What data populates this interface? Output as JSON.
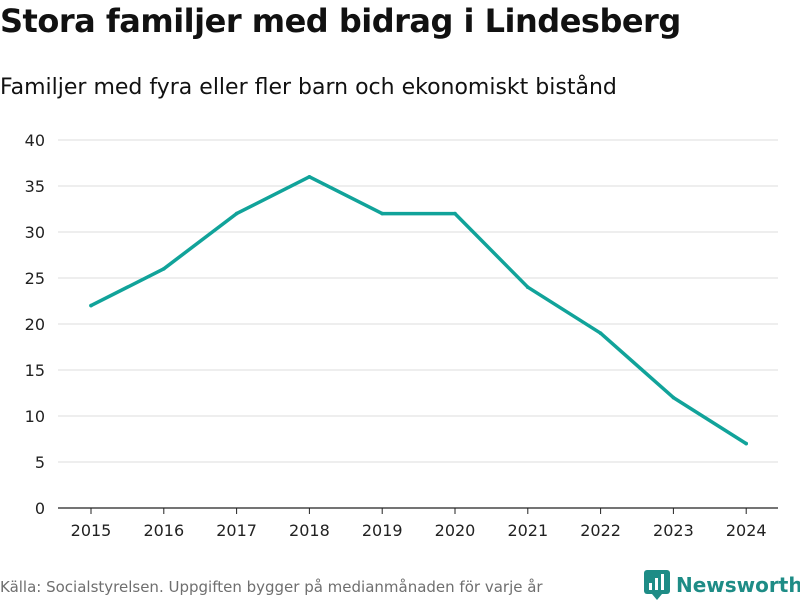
{
  "title": "Stora familjer med bidrag i Lindesberg",
  "subtitle": "Familjer med fyra eller fler barn och ekonomiskt bistånd",
  "footer": "Källa: Socialstyrelsen. Uppgiften bygger på medianmånaden för varje år",
  "brand": {
    "name": "Newsworthy",
    "icon": "newsworthy-logo-icon",
    "color": "#1e8c86"
  },
  "chart_data": {
    "type": "line",
    "title": "Stora familjer med bidrag i Lindesberg",
    "subtitle": "Familjer med fyra eller fler barn och ekonomiskt bistånd",
    "xlabel": "",
    "ylabel": "",
    "categories": [
      "2015",
      "2016",
      "2017",
      "2018",
      "2019",
      "2020",
      "2021",
      "2022",
      "2023",
      "2024"
    ],
    "series": [
      {
        "name": "Familjer",
        "values": [
          22,
          26,
          32,
          36,
          32,
          32,
          24,
          19,
          12,
          7
        ],
        "color": "#11a39a"
      }
    ],
    "ylim": [
      0,
      40
    ],
    "yticks": [
      0,
      5,
      10,
      15,
      20,
      25,
      30,
      35,
      40
    ],
    "grid": true
  }
}
